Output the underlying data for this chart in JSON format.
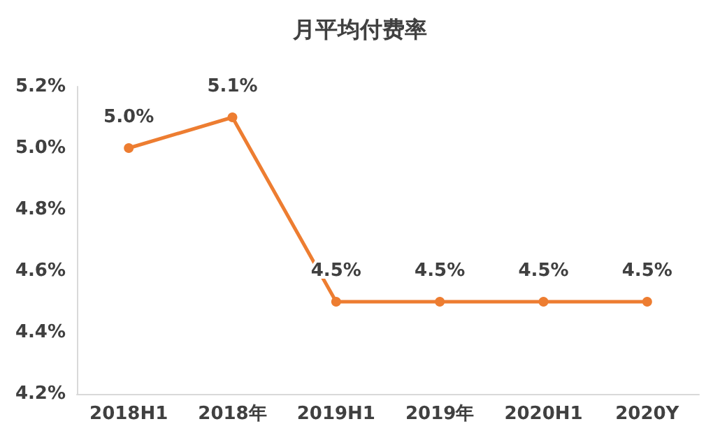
{
  "chart_data": {
    "type": "line",
    "title": "月平均付费率",
    "categories": [
      "2018H1",
      "2018年",
      "2019H1",
      "2019年",
      "2020H1",
      "2020Y"
    ],
    "series": [
      {
        "color": "#ed7d31",
        "values": [
          5.0,
          5.1,
          4.5,
          4.5,
          4.5,
          4.5
        ],
        "value_labels": [
          "5.0%",
          "5.1%",
          "4.5%",
          "4.5%",
          "4.5%",
          "4.5%"
        ]
      }
    ],
    "ylim": [
      4.2,
      5.2
    ],
    "yticks": [
      {
        "value": 4.2,
        "label": "4.2%"
      },
      {
        "value": 4.4,
        "label": "4.4%"
      },
      {
        "value": 4.6,
        "label": "4.6%"
      },
      {
        "value": 4.8,
        "label": "4.8%"
      },
      {
        "value": 5.0,
        "label": "5.0%"
      },
      {
        "value": 5.2,
        "label": "5.2%"
      }
    ],
    "grid": false,
    "marker": "circle",
    "line_style": "solid"
  }
}
